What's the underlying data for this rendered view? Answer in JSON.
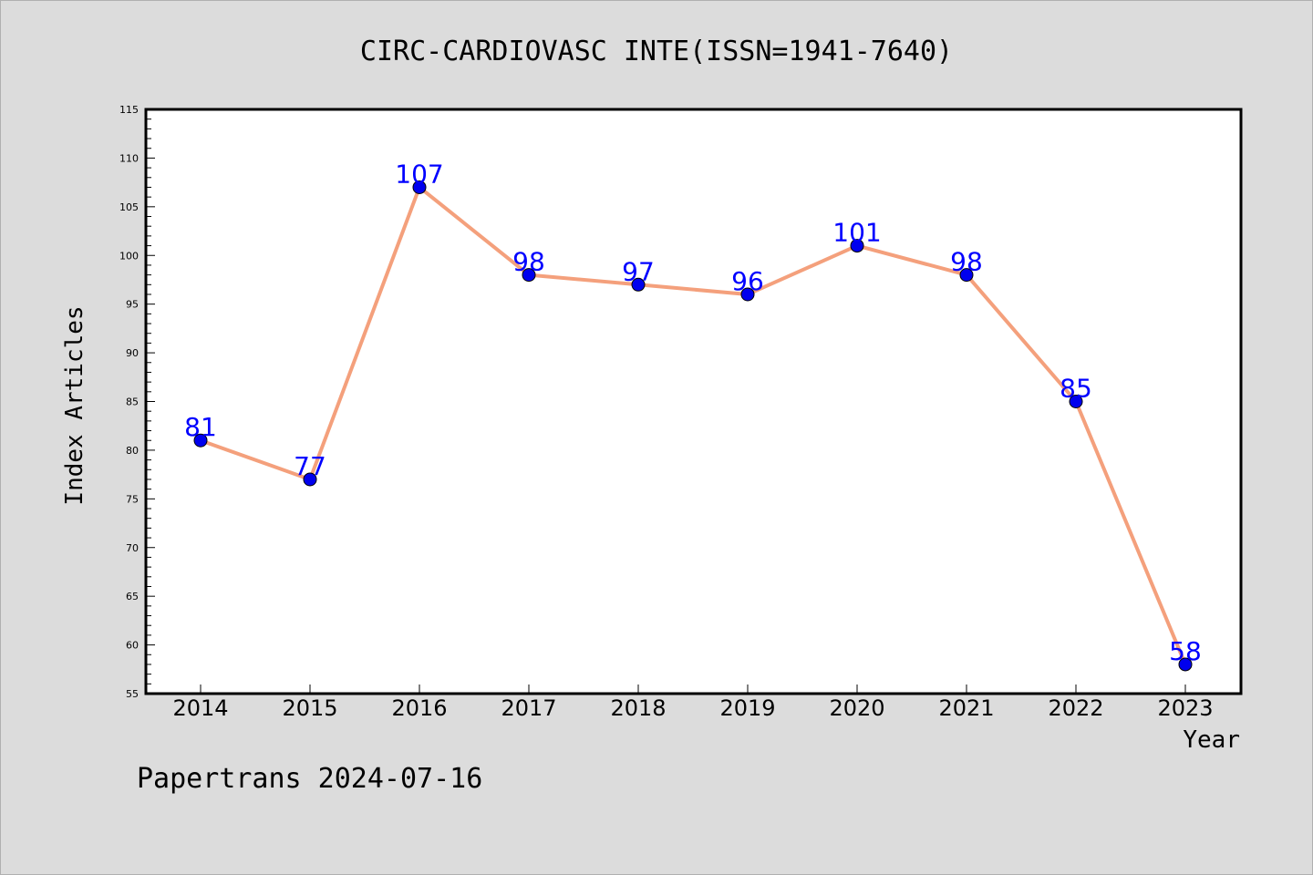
{
  "chart_data": {
    "type": "line",
    "title": "CIRC-CARDIOVASC INTE(ISSN=1941-7640)",
    "xlabel": "Year",
    "ylabel": "Index Articles",
    "categories": [
      "2014",
      "2015",
      "2016",
      "2017",
      "2018",
      "2019",
      "2020",
      "2021",
      "2022",
      "2023"
    ],
    "values": [
      81,
      77,
      107,
      98,
      97,
      96,
      101,
      98,
      85,
      58
    ],
    "ylim": [
      55,
      115
    ],
    "yticks": [
      55,
      60,
      65,
      70,
      75,
      80,
      85,
      90,
      95,
      100,
      105,
      110,
      115
    ],
    "grid": false,
    "legend": "none",
    "colors": {
      "line": "#f4a07c",
      "marker": "#0000ee",
      "data_label": "#0000ff",
      "plot_background": "#ffffff",
      "page_background": "#dcdcdc"
    }
  },
  "footer": "Papertrans 2024-07-16"
}
